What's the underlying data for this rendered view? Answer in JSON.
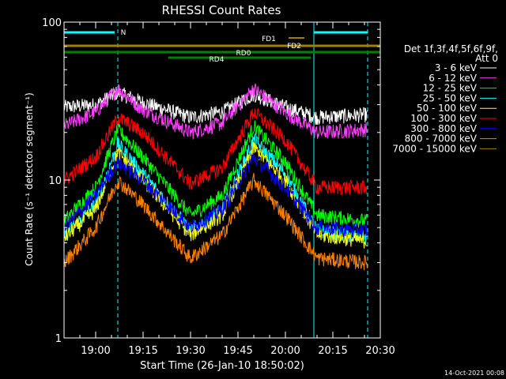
{
  "chart_data": {
    "type": "line",
    "title": "RHESSI Count Rates",
    "ylabel": "Count Rate (s⁻¹ detector segment⁻¹)",
    "xlabel": "Start Time (26-Jan-10 18:50:02)",
    "yscale": "log",
    "ylim": [
      1,
      100
    ],
    "xlim": [
      "18:50",
      "20:30"
    ],
    "x_ticks": [
      "19:00",
      "19:15",
      "19:30",
      "19:45",
      "20:00",
      "20:15",
      "20:30"
    ],
    "y_ticks": [
      "1",
      "10",
      "100"
    ],
    "timestamp": "14-Oct-2021 00:08",
    "legend": {
      "header1": "Det 1f,3f,4f,5f,6f,9f,",
      "header2": "Att 0",
      "entries": [
        {
          "label": "3 - 6 keV",
          "color": "#ffffff"
        },
        {
          "label": "6 - 12 keV",
          "color": "#ff40ff"
        },
        {
          "label": "12 - 25 keV",
          "color": "#00ff00"
        },
        {
          "label": "25 - 50 keV",
          "color": "#00ffff"
        },
        {
          "label": "50 - 100 keV",
          "color": "#ffff00"
        },
        {
          "label": "100 - 300 keV",
          "color": "#ff0000"
        },
        {
          "label": "300 - 800 keV",
          "color": "#0000ff"
        },
        {
          "label": "800 - 7000 keV",
          "color": "#ff8000"
        },
        {
          "label": "7000 - 15000 keV",
          "color": "#a08000"
        }
      ]
    },
    "bars": [
      {
        "label": "N",
        "color": "#00ffff",
        "segments": [
          [
            "18:50",
            "19:06"
          ],
          [
            "20:09",
            "20:26"
          ]
        ]
      },
      {
        "label": "FD1",
        "color": "#a08000",
        "segments": [
          [
            "20:01",
            "20:06"
          ]
        ]
      },
      {
        "label": "FD2",
        "color": "#a08000",
        "segments": [
          [
            "18:50",
            "20:30"
          ]
        ]
      },
      {
        "label": "RD0",
        "color": "#008000",
        "segments": [
          [
            "18:50",
            "20:30"
          ]
        ]
      },
      {
        "label": "RD4",
        "color": "#008000",
        "segments": [
          [
            "19:23",
            "20:08"
          ]
        ]
      }
    ],
    "vlines": [
      {
        "x": "18:50",
        "style": "solid"
      },
      {
        "x": "19:07",
        "style": "dashed"
      },
      {
        "x": "20:09",
        "style": "solid"
      },
      {
        "x": "20:26",
        "style": "dashed"
      }
    ],
    "series": [
      {
        "name": "3 - 6 keV",
        "color": "#ffffff",
        "x": [
          "18:50",
          "19:00",
          "19:07",
          "19:15",
          "19:30",
          "19:40",
          "19:50",
          "20:00",
          "20:10",
          "20:26"
        ],
        "y": [
          29,
          30,
          36,
          31,
          25,
          27,
          35,
          29,
          25,
          26
        ]
      },
      {
        "name": "6 - 12 keV",
        "color": "#ff40ff",
        "x": [
          "18:50",
          "19:00",
          "19:07",
          "19:15",
          "19:30",
          "19:40",
          "19:50",
          "20:00",
          "20:10",
          "20:26"
        ],
        "y": [
          22,
          27,
          38,
          28,
          20,
          23,
          38,
          27,
          20,
          21
        ]
      },
      {
        "name": "12 - 25 keV",
        "color": "#00ff00",
        "x": [
          "18:50",
          "19:00",
          "19:07",
          "19:15",
          "19:30",
          "19:40",
          "19:50",
          "20:00",
          "20:10",
          "20:26"
        ],
        "y": [
          5.5,
          9,
          21,
          14,
          6,
          8,
          22,
          13,
          6,
          5.5
        ]
      },
      {
        "name": "25 - 50 keV",
        "color": "#00ffff",
        "x": [
          "18:50",
          "19:00",
          "19:07",
          "19:15",
          "19:30",
          "19:40",
          "19:50",
          "20:00",
          "20:10",
          "20:26"
        ],
        "y": [
          4.5,
          7,
          17,
          11,
          4.8,
          6.5,
          18,
          11,
          4.8,
          4.3
        ]
      },
      {
        "name": "50 - 100 keV",
        "color": "#ffff00",
        "x": [
          "18:50",
          "19:00",
          "19:07",
          "19:15",
          "19:30",
          "19:40",
          "19:50",
          "20:00",
          "20:10",
          "20:26"
        ],
        "y": [
          4.3,
          6.5,
          15,
          10,
          4.5,
          6,
          16,
          10,
          4.5,
          4.1
        ]
      },
      {
        "name": "100 - 300 keV",
        "color": "#ff0000",
        "x": [
          "18:50",
          "19:00",
          "19:07",
          "19:15",
          "19:30",
          "19:40",
          "19:50",
          "20:00",
          "20:10",
          "20:26"
        ],
        "y": [
          10,
          14,
          25,
          20,
          9.5,
          12,
          27,
          18,
          9,
          9
        ]
      },
      {
        "name": "300 - 800 keV",
        "color": "#0000ff",
        "x": [
          "18:50",
          "19:00",
          "19:07",
          "19:15",
          "19:30",
          "19:40",
          "19:50",
          "20:00",
          "20:10",
          "20:26"
        ],
        "y": [
          5,
          8,
          13,
          10,
          5,
          6.5,
          14,
          9,
          5,
          4.8
        ]
      },
      {
        "name": "800 - 7000 keV",
        "color": "#ff8000",
        "x": [
          "18:50",
          "19:00",
          "19:07",
          "19:15",
          "19:30",
          "19:40",
          "19:50",
          "20:00",
          "20:10",
          "20:26"
        ],
        "y": [
          3,
          5,
          10,
          7,
          3.2,
          4.5,
          10,
          6,
          3.2,
          3
        ]
      }
    ]
  }
}
